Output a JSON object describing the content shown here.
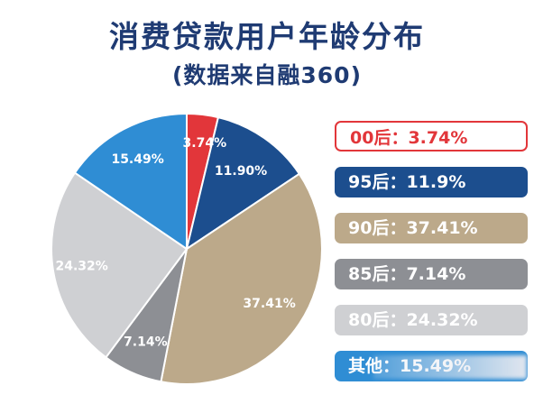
{
  "title": "消费贷款用户年龄分布",
  "subtitle": "(数据来自融360)",
  "chart_data": {
    "type": "pie",
    "title": "消费贷款用户年龄分布",
    "subtitle": "(数据来自融360)",
    "slices": [
      {
        "label": "00后",
        "value": 3.74,
        "display": "3.74%",
        "color": "#e2363a"
      },
      {
        "label": "95后",
        "value": 11.9,
        "display": "11.90%",
        "color": "#1c4e8e"
      },
      {
        "label": "90后",
        "value": 37.41,
        "display": "37.41%",
        "color": "#bca98a"
      },
      {
        "label": "85后",
        "value": 7.14,
        "display": "7.14%",
        "color": "#8d8f94"
      },
      {
        "label": "80后",
        "value": 24.32,
        "display": "24.32%",
        "color": "#cfd0d3"
      },
      {
        "label": "其他",
        "value": 15.49,
        "display": "15.49%",
        "color": "#2f8dd4"
      }
    ],
    "legend": [
      {
        "text": "00后：3.74%",
        "color": "#e2363a",
        "text_color": "#e2363a"
      },
      {
        "text": "95后：11.9%",
        "color": "#1c4e8e",
        "text_color": "#ffffff"
      },
      {
        "text": "90后：37.41%",
        "color": "#bca98a",
        "text_color": "#ffffff"
      },
      {
        "text": "85后：7.14%",
        "color": "#8d8f94",
        "text_color": "#ffffff"
      },
      {
        "text": "80后：24.32%",
        "color": "#cfd0d3",
        "text_color": "#ffffff"
      },
      {
        "text": "其他：15.49%",
        "color": "#2f8dd4",
        "text_color": "#ffffff"
      }
    ],
    "legend_position": "right"
  }
}
